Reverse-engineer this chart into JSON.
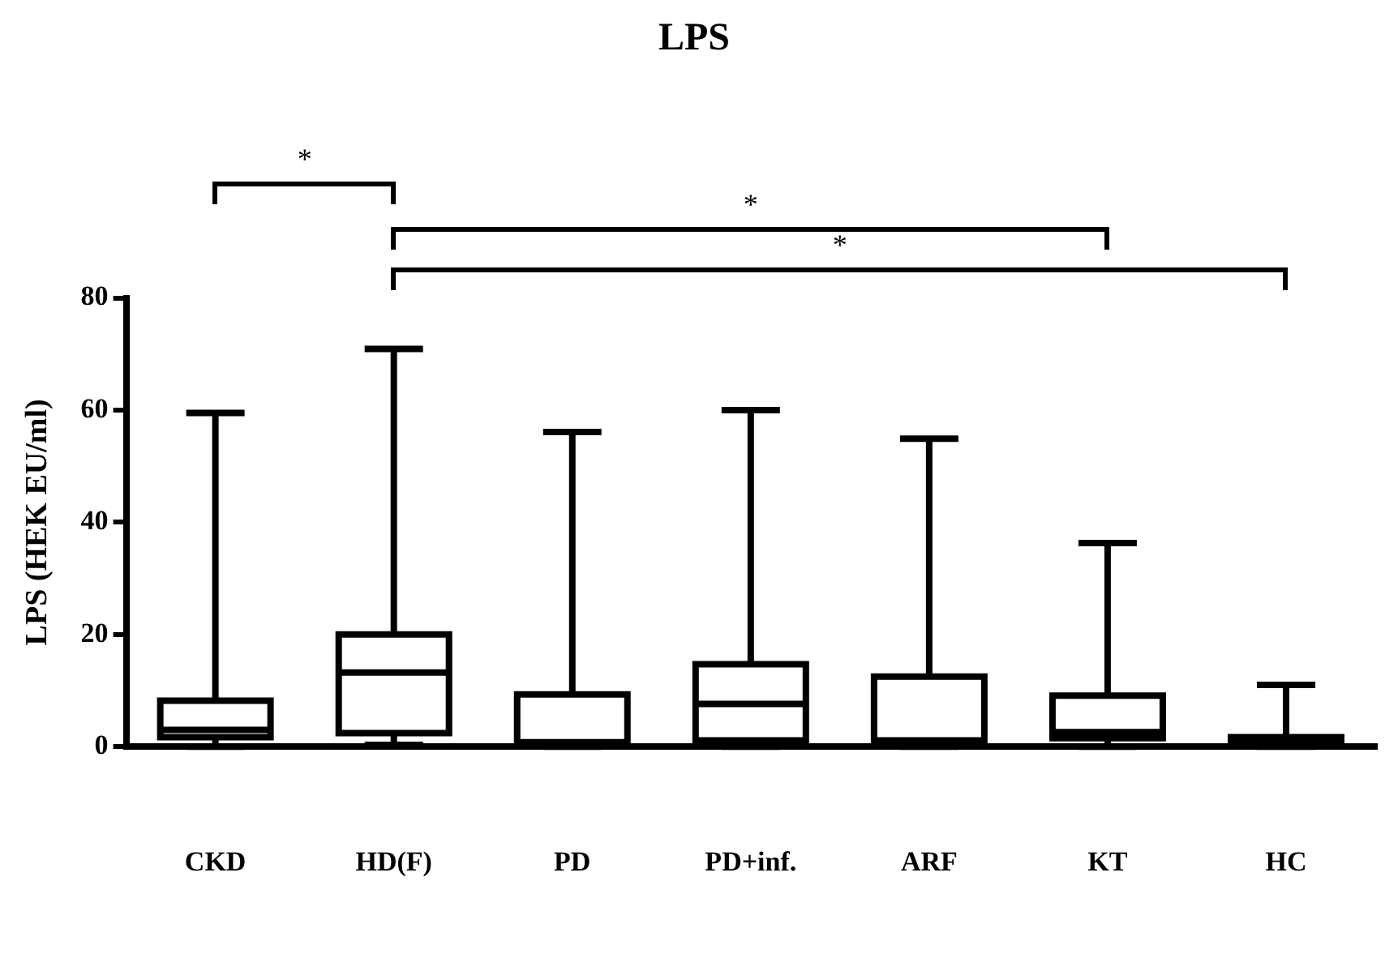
{
  "chart_data": {
    "type": "box",
    "title": "LPS",
    "ylabel": "LPS (HEK EU/ml)",
    "categories": [
      "CKD",
      "HD(F)",
      "PD",
      "PD+inf.",
      "ARF",
      "KT",
      "HC"
    ],
    "boxes": [
      {
        "low": 0,
        "q1": 1.7,
        "median": 3.0,
        "q3": 8.2,
        "high": 59.5
      },
      {
        "low": 0.3,
        "q1": 2.4,
        "median": 13.2,
        "q3": 20.0,
        "high": 70.9
      },
      {
        "low": 0,
        "q1": 0.5,
        "median": 0.8,
        "q3": 9.3,
        "high": 56.1
      },
      {
        "low": 0,
        "q1": 1.1,
        "median": 7.6,
        "q3": 14.7,
        "high": 60.0
      },
      {
        "low": 0,
        "q1": 0.5,
        "median": 1.1,
        "q3": 12.5,
        "high": 54.9
      },
      {
        "low": 0,
        "q1": 1.5,
        "median": 2.6,
        "q3": 9.1,
        "high": 36.3
      },
      {
        "low": 0,
        "q1": 0.3,
        "median": 1.0,
        "q3": 1.7,
        "high": 11.0
      }
    ],
    "color": "#000000",
    "ylim": [
      0,
      80
    ],
    "yticks": [
      0,
      20,
      40,
      60,
      80
    ],
    "grid": false,
    "legend": false,
    "annotations": [
      "*",
      "*",
      "*"
    ]
  }
}
